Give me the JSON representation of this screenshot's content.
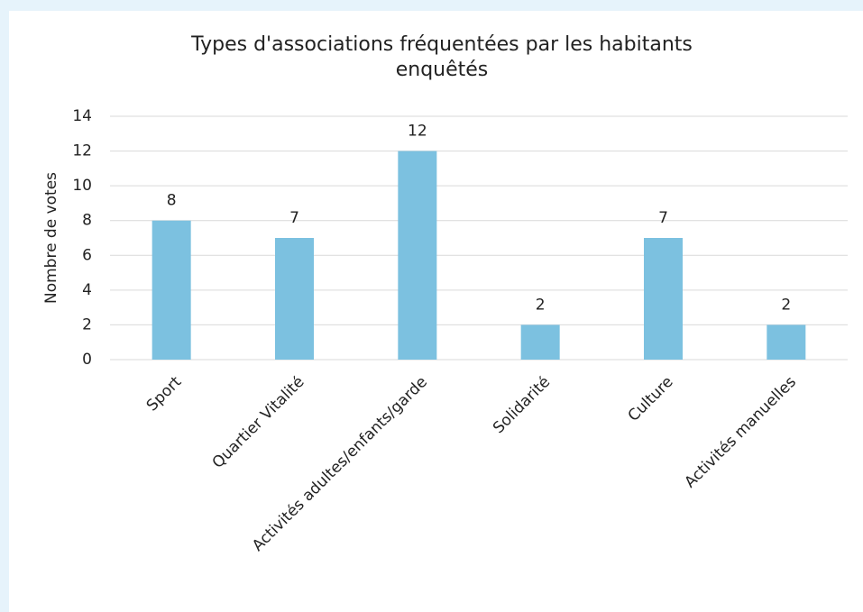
{
  "chart_data": {
    "type": "bar",
    "title": "Types d'associations fréquentées par les habitants\nenquêtés",
    "y_label": "Nombre de votes",
    "categories": [
      "Sport",
      "Quartier Vitalité",
      "Activités adultes/enfants/garde",
      "Solidarité",
      "Culture",
      "Activités manuelles"
    ],
    "values": [
      8,
      7,
      12,
      2,
      7,
      2
    ],
    "color": "#7cc1e0",
    "ylim": [
      0,
      14
    ],
    "yticks": [
      0,
      2,
      4,
      6,
      8,
      10,
      12,
      14
    ],
    "grid": true
  }
}
